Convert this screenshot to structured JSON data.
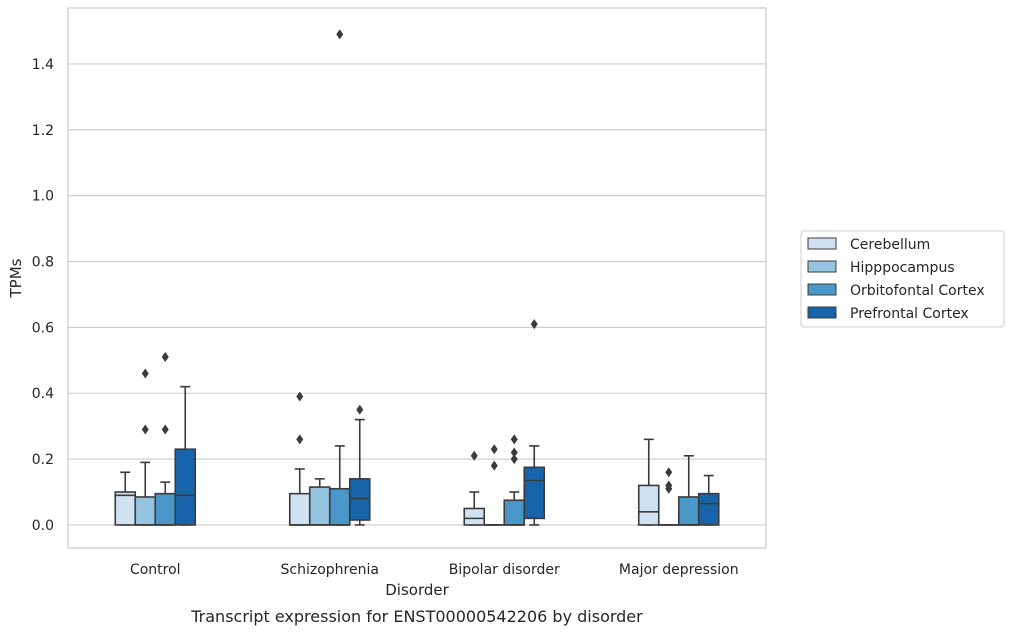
{
  "caption": "Transcript expression for ENST00000542206 by disorder",
  "chart_data": {
    "type": "box",
    "xlabel": "Disorder",
    "ylabel": "TPMs",
    "ylim": [
      -0.07,
      1.57
    ],
    "yticks": [
      0.0,
      0.2,
      0.4,
      0.6,
      0.8,
      1.0,
      1.2,
      1.4
    ],
    "ytick_labels": [
      "0.0",
      "0.2",
      "0.4",
      "0.6",
      "0.8",
      "1.0",
      "1.2",
      "1.4"
    ],
    "grid": "horizontal",
    "legend_position": "right",
    "categories": [
      "Control",
      "Schizophrenia",
      "Bipolar disorder",
      "Major depression"
    ],
    "series": [
      {
        "name": "Cerebellum",
        "color": "#d0e1f2",
        "boxes": [
          {
            "q1": 0.0,
            "median": 0.09,
            "q3": 0.1,
            "whislo": 0.0,
            "whishi": 0.16,
            "fliers": []
          },
          {
            "q1": 0.0,
            "median": 0.0,
            "q3": 0.095,
            "whislo": 0.0,
            "whishi": 0.17,
            "fliers": [
              0.26,
              0.39
            ]
          },
          {
            "q1": 0.0,
            "median": 0.02,
            "q3": 0.05,
            "whislo": 0.0,
            "whishi": 0.1,
            "fliers": [
              0.21
            ]
          },
          {
            "q1": 0.0,
            "median": 0.04,
            "q3": 0.12,
            "whislo": 0.0,
            "whishi": 0.26,
            "fliers": []
          }
        ]
      },
      {
        "name": "Hipppocampus",
        "color": "#94c4df",
        "boxes": [
          {
            "q1": 0.0,
            "median": 0.0,
            "q3": 0.085,
            "whislo": 0.0,
            "whishi": 0.19,
            "fliers": [
              0.29,
              0.46
            ]
          },
          {
            "q1": 0.0,
            "median": 0.0,
            "q3": 0.115,
            "whislo": 0.0,
            "whishi": 0.14,
            "fliers": []
          },
          {
            "q1": 0.0,
            "median": 0.0,
            "q3": 0.0,
            "whislo": 0.0,
            "whishi": 0.0,
            "fliers": [
              0.18,
              0.23
            ]
          },
          {
            "q1": 0.0,
            "median": 0.0,
            "q3": 0.0,
            "whislo": 0.0,
            "whishi": 0.0,
            "fliers": [
              0.11,
              0.12,
              0.16
            ]
          }
        ]
      },
      {
        "name": "Orbitofontal Cortex",
        "color": "#4a98c9",
        "boxes": [
          {
            "q1": 0.0,
            "median": 0.0,
            "q3": 0.095,
            "whislo": 0.0,
            "whishi": 0.13,
            "fliers": [
              0.29,
              0.51
            ]
          },
          {
            "q1": 0.0,
            "median": 0.0,
            "q3": 0.11,
            "whislo": 0.0,
            "whishi": 0.24,
            "fliers": [
              1.49
            ]
          },
          {
            "q1": 0.0,
            "median": 0.0,
            "q3": 0.075,
            "whislo": 0.0,
            "whishi": 0.1,
            "fliers": [
              0.2,
              0.22,
              0.26
            ]
          },
          {
            "q1": 0.0,
            "median": 0.0,
            "q3": 0.085,
            "whislo": 0.0,
            "whishi": 0.21,
            "fliers": []
          }
        ]
      },
      {
        "name": "Prefrontal Cortex",
        "color": "#1764ab",
        "boxes": [
          {
            "q1": 0.0,
            "median": 0.09,
            "q3": 0.23,
            "whislo": 0.0,
            "whishi": 0.42,
            "fliers": []
          },
          {
            "q1": 0.015,
            "median": 0.08,
            "q3": 0.14,
            "whislo": 0.0,
            "whishi": 0.32,
            "fliers": [
              0.35
            ]
          },
          {
            "q1": 0.02,
            "median": 0.135,
            "q3": 0.175,
            "whislo": 0.0,
            "whishi": 0.24,
            "fliers": [
              0.61
            ]
          },
          {
            "q1": 0.0,
            "median": 0.065,
            "q3": 0.095,
            "whislo": 0.0,
            "whishi": 0.15,
            "fliers": []
          }
        ]
      }
    ]
  }
}
